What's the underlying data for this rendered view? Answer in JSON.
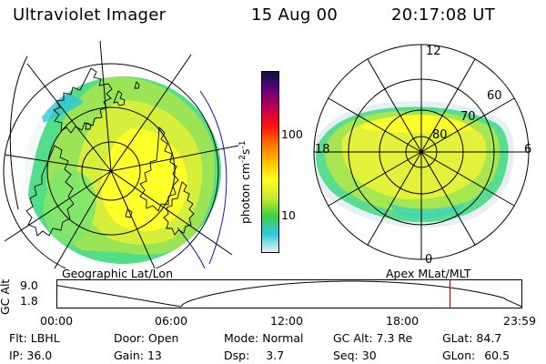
{
  "header": {
    "title": "Ultraviolet Imager",
    "date": "15 Aug 00",
    "time": "20:17:08 UT"
  },
  "maps": {
    "left_label": "Geographic Lat/Lon",
    "right_label": "Apex MLat/MLT"
  },
  "polar_plot": {
    "mlt_labels": {
      "top": "12",
      "left": "18",
      "right": "6",
      "bottom": "0"
    },
    "lat_labels": [
      "60",
      "70",
      "80"
    ]
  },
  "colorbar": {
    "label": "photon cm",
    "exp1": "-2",
    "mid": "s",
    "exp2": "-1",
    "tick_labels": [
      "100",
      "10"
    ],
    "colors": [
      "#e8f0f4",
      "#30c8e0",
      "#40d040",
      "#c8e830",
      "#ffff20",
      "#ffc000",
      "#ff7000",
      "#ff1010",
      "#c00050",
      "#600080",
      "#101040"
    ]
  },
  "altitude_plot": {
    "ylabel": "GC Alt",
    "y_ticks": [
      "9.0",
      "1.8"
    ],
    "x_ticks": [
      "00:00",
      "06:00",
      "12:00",
      "18:00",
      "23:59"
    ],
    "marker_time_hours": 20.29,
    "apogee_re": 9.0,
    "perigee_re": 1.8
  },
  "info": {
    "rows": [
      [
        {
          "label": "Flt:",
          "value": "LBHL"
        },
        {
          "label": "Door:",
          "value": "Open"
        },
        {
          "label": "Mode:",
          "value": "Normal"
        },
        {
          "label": "GC Alt:",
          "value": "7.3 Re"
        },
        {
          "label": "GLat:",
          "value": "84.7"
        }
      ],
      [
        {
          "label": "IP:",
          "value": "36.0"
        },
        {
          "label": "Gain:",
          "value": "13"
        },
        {
          "label": "Dsp:",
          "value": "3.7"
        },
        {
          "label": "Seq:",
          "value": "30"
        },
        {
          "label": "GLon:",
          "value": "60.5"
        }
      ]
    ]
  }
}
